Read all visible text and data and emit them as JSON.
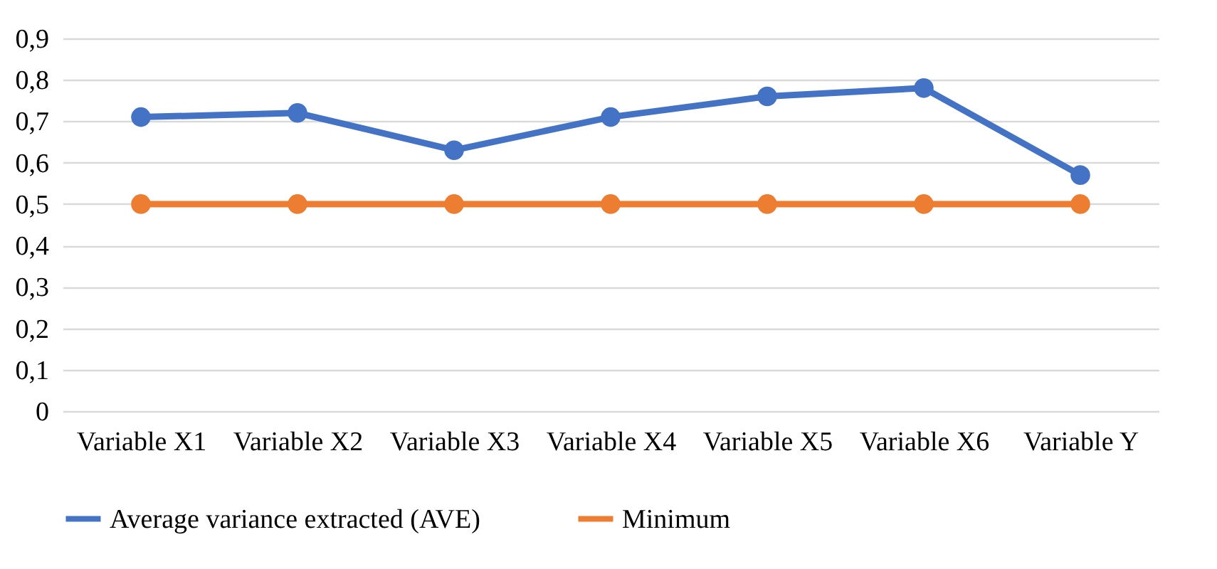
{
  "chart_data": {
    "type": "line",
    "categories": [
      "Variable X1",
      "Variable X2",
      "Variable X3",
      "Variable X4",
      "Variable X5",
      "Variable X6",
      "Variable Y"
    ],
    "series": [
      {
        "name": "Average variance extracted (AVE)",
        "color": "#4472c4",
        "values": [
          0.71,
          0.72,
          0.63,
          0.71,
          0.76,
          0.78,
          0.57
        ]
      },
      {
        "name": "Minimum",
        "color": "#ed7d31",
        "values": [
          0.5,
          0.5,
          0.5,
          0.5,
          0.5,
          0.5,
          0.5
        ]
      }
    ],
    "ylim": [
      0,
      0.9
    ],
    "yticks": [
      0,
      {
        "value": 0.1,
        "label": "0,1"
      },
      {
        "value": 0.2,
        "label": "0,2"
      },
      {
        "value": 0.3,
        "label": "0,3"
      },
      {
        "value": 0.4,
        "label": "0,4"
      },
      {
        "value": 0.5,
        "label": "0,5"
      },
      {
        "value": 0.6,
        "label": "0,6"
      },
      {
        "value": 0.7,
        "label": "0,7"
      },
      {
        "value": 0.8,
        "label": "0,8"
      },
      {
        "value": 0.9,
        "label": "0,9"
      }
    ],
    "grid": "y",
    "legend": "bottom",
    "marker": "circle",
    "line_style": "solid"
  }
}
